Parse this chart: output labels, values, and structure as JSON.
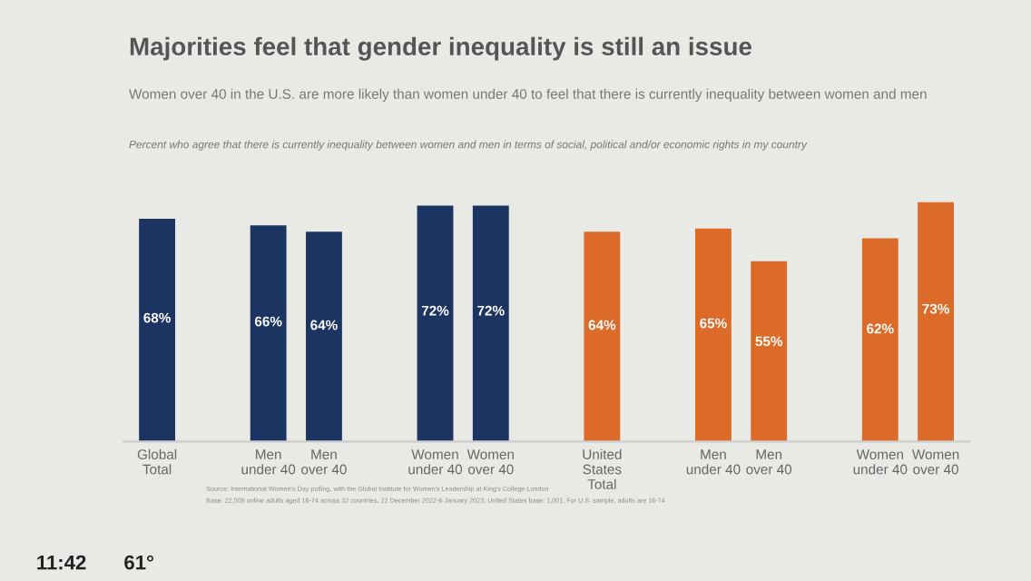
{
  "chart_data": {
    "type": "bar",
    "title": "Majorities feel that gender inequality is still an issue",
    "subtitle": "Women over 40 in the U.S. are more likely than women under 40 to feel that there is currently inequality between women and men",
    "categories": [
      "Global\nTotal",
      null,
      "Men\nunder 40",
      "Men\nover 40",
      null,
      "Women\nunder 40",
      "Women\nover 40",
      null,
      "United\nStates\nTotal",
      null,
      "Men\nunder 40",
      "Men\nover 40",
      null,
      "Women\nunder 40",
      "Women\nover 40"
    ],
    "values": [
      68,
      null,
      66,
      64,
      null,
      72,
      72,
      null,
      64,
      null,
      65,
      55,
      null,
      62,
      73
    ],
    "value_labels": [
      "68%",
      null,
      "66%",
      "64%",
      null,
      "72%",
      "72%",
      null,
      "64%",
      null,
      "65%",
      "55%",
      null,
      "62%",
      "73%"
    ],
    "colors": [
      "#1c3461",
      null,
      "#1c3461",
      "#1c3461",
      null,
      "#1c3461",
      "#1c3461",
      null,
      "#dc6a28",
      null,
      "#dc6a28",
      "#dc6a28",
      null,
      "#dc6a28",
      "#dc6a28"
    ],
    "annotations": [
      "Percent who agree that there is currently inequality between women and men in terms of social, political and/or economic rights in my country",
      "Source: International Women's Day polling, with the Global Institute for Women's Leadership at King's College London",
      "Base: 22,508 online adults aged 16-74 across 32 countries, 22 December 2022-6 January 2023; United States base: 1,001. For U.S. sample, adults are 16-74",
      "11:42",
      "61°"
    ]
  }
}
